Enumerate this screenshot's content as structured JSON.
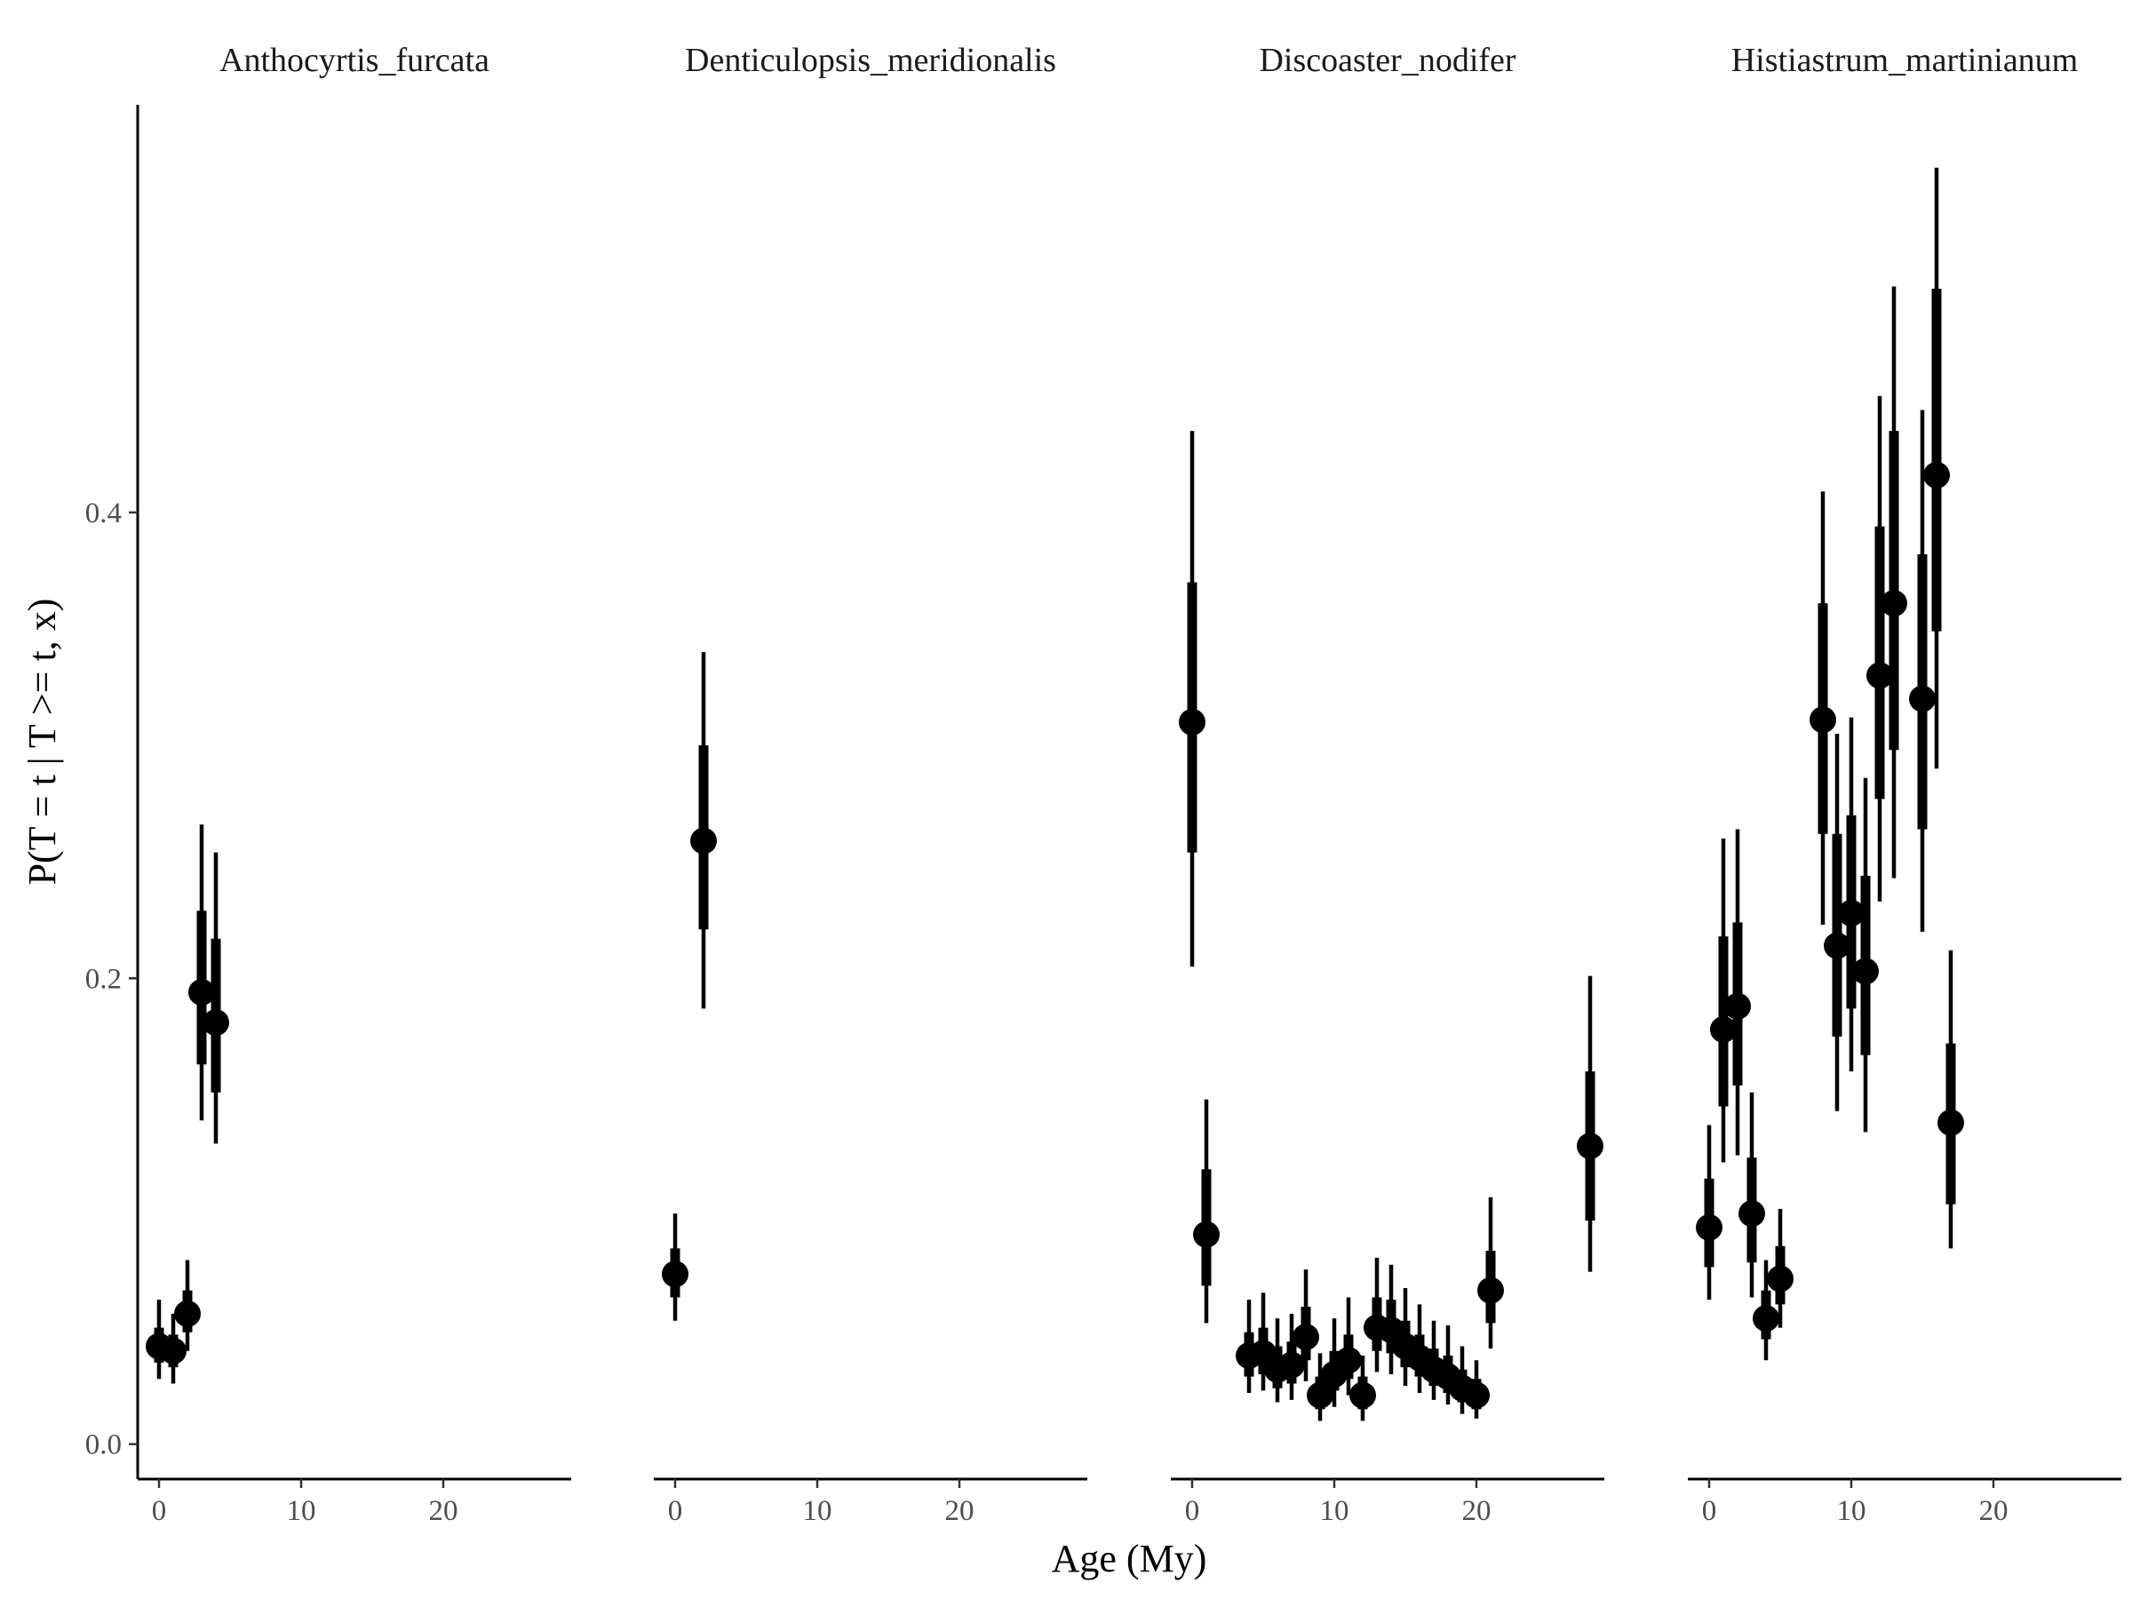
{
  "chart_data": {
    "type": "scatter",
    "subtype": "faceted point-range (facet_wrap, 4 panels, shared y axis)",
    "xlabel": "Age (My)",
    "ylabel": "P(T = t | T >= t, x)",
    "xlim": [
      -1.5,
      29
    ],
    "ylim": [
      -0.015,
      0.575
    ],
    "x_ticks": [
      0,
      10,
      20
    ],
    "x_tick_labels": [
      "0",
      "10",
      "20"
    ],
    "y_ticks": [
      0.0,
      0.2,
      0.4
    ],
    "y_tick_labels": [
      "0.0",
      "0.2",
      "0.4"
    ],
    "grid": false,
    "legend": "none",
    "point_color": "#000000",
    "panels": [
      {
        "title": "Anthocyrtis_furcata",
        "points": [
          {
            "x": 0,
            "y": 0.042,
            "inner": [
              0.035,
              0.05
            ],
            "outer": [
              0.028,
              0.062
            ]
          },
          {
            "x": 1,
            "y": 0.04,
            "inner": [
              0.033,
              0.047
            ],
            "outer": [
              0.026,
              0.056
            ]
          },
          {
            "x": 2,
            "y": 0.056,
            "inner": [
              0.048,
              0.066
            ],
            "outer": [
              0.04,
              0.079
            ]
          },
          {
            "x": 3,
            "y": 0.194,
            "inner": [
              0.163,
              0.229
            ],
            "outer": [
              0.139,
              0.266
            ]
          },
          {
            "x": 4,
            "y": 0.181,
            "inner": [
              0.151,
              0.217
            ],
            "outer": [
              0.129,
              0.254
            ]
          }
        ]
      },
      {
        "title": "Denticulopsis_meridionalis",
        "points": [
          {
            "x": 0,
            "y": 0.073,
            "inner": [
              0.063,
              0.084
            ],
            "outer": [
              0.053,
              0.099
            ]
          },
          {
            "x": 2,
            "y": 0.259,
            "inner": [
              0.221,
              0.3
            ],
            "outer": [
              0.187,
              0.34
            ]
          }
        ]
      },
      {
        "title": "Discoaster_nodifer",
        "points": [
          {
            "x": 0,
            "y": 0.31,
            "inner": [
              0.254,
              0.37
            ],
            "outer": [
              0.205,
              0.435
            ]
          },
          {
            "x": 1,
            "y": 0.09,
            "inner": [
              0.068,
              0.118
            ],
            "outer": [
              0.052,
              0.148
            ]
          },
          {
            "x": 4,
            "y": 0.038,
            "inner": [
              0.029,
              0.048
            ],
            "outer": [
              0.022,
              0.062
            ]
          },
          {
            "x": 5,
            "y": 0.039,
            "inner": [
              0.03,
              0.05
            ],
            "outer": [
              0.023,
              0.065
            ]
          },
          {
            "x": 6,
            "y": 0.032,
            "inner": [
              0.024,
              0.042
            ],
            "outer": [
              0.018,
              0.054
            ]
          },
          {
            "x": 7,
            "y": 0.034,
            "inner": [
              0.026,
              0.044
            ],
            "outer": [
              0.019,
              0.056
            ]
          },
          {
            "x": 8,
            "y": 0.046,
            "inner": [
              0.036,
              0.059
            ],
            "outer": [
              0.027,
              0.075
            ]
          },
          {
            "x": 9,
            "y": 0.021,
            "inner": [
              0.015,
              0.029
            ],
            "outer": [
              0.01,
              0.039
            ]
          },
          {
            "x": 10,
            "y": 0.03,
            "inner": [
              0.023,
              0.04
            ],
            "outer": [
              0.016,
              0.054
            ]
          },
          {
            "x": 11,
            "y": 0.036,
            "inner": [
              0.028,
              0.047
            ],
            "outer": [
              0.021,
              0.063
            ]
          },
          {
            "x": 12,
            "y": 0.021,
            "inner": [
              0.015,
              0.029
            ],
            "outer": [
              0.01,
              0.038
            ]
          },
          {
            "x": 13,
            "y": 0.05,
            "inner": [
              0.04,
              0.063
            ],
            "outer": [
              0.031,
              0.08
            ]
          },
          {
            "x": 14,
            "y": 0.049,
            "inner": [
              0.039,
              0.062
            ],
            "outer": [
              0.03,
              0.077
            ]
          },
          {
            "x": 15,
            "y": 0.042,
            "inner": [
              0.033,
              0.053
            ],
            "outer": [
              0.025,
              0.067
            ]
          },
          {
            "x": 16,
            "y": 0.037,
            "inner": [
              0.029,
              0.047
            ],
            "outer": [
              0.022,
              0.06
            ]
          },
          {
            "x": 17,
            "y": 0.032,
            "inner": [
              0.025,
              0.041
            ],
            "outer": [
              0.019,
              0.053
            ]
          },
          {
            "x": 18,
            "y": 0.029,
            "inner": [
              0.022,
              0.038
            ],
            "outer": [
              0.017,
              0.051
            ]
          },
          {
            "x": 19,
            "y": 0.024,
            "inner": [
              0.018,
              0.032
            ],
            "outer": [
              0.013,
              0.042
            ]
          },
          {
            "x": 20,
            "y": 0.021,
            "inner": [
              0.015,
              0.028
            ],
            "outer": [
              0.011,
              0.036
            ]
          },
          {
            "x": 21,
            "y": 0.066,
            "inner": [
              0.052,
              0.083
            ],
            "outer": [
              0.041,
              0.106
            ]
          },
          {
            "x": 28,
            "y": 0.128,
            "inner": [
              0.096,
              0.16
            ],
            "outer": [
              0.074,
              0.201
            ]
          }
        ]
      },
      {
        "title": "Histiastrum_martinianum",
        "points": [
          {
            "x": 0,
            "y": 0.093,
            "inner": [
              0.076,
              0.114
            ],
            "outer": [
              0.062,
              0.137
            ]
          },
          {
            "x": 1,
            "y": 0.178,
            "inner": [
              0.145,
              0.218
            ],
            "outer": [
              0.121,
              0.26
            ]
          },
          {
            "x": 2,
            "y": 0.188,
            "inner": [
              0.154,
              0.224
            ],
            "outer": [
              0.124,
              0.264
            ]
          },
          {
            "x": 3,
            "y": 0.099,
            "inner": [
              0.078,
              0.123
            ],
            "outer": [
              0.063,
              0.151
            ]
          },
          {
            "x": 4,
            "y": 0.054,
            "inner": [
              0.045,
              0.066
            ],
            "outer": [
              0.036,
              0.079
            ]
          },
          {
            "x": 5,
            "y": 0.071,
            "inner": [
              0.06,
              0.085
            ],
            "outer": [
              0.05,
              0.101
            ]
          },
          {
            "x": 8,
            "y": 0.311,
            "inner": [
              0.262,
              0.361
            ],
            "outer": [
              0.223,
              0.409
            ]
          },
          {
            "x": 9,
            "y": 0.214,
            "inner": [
              0.175,
              0.262
            ],
            "outer": [
              0.143,
              0.305
            ]
          },
          {
            "x": 10,
            "y": 0.228,
            "inner": [
              0.187,
              0.27
            ],
            "outer": [
              0.16,
              0.312
            ]
          },
          {
            "x": 11,
            "y": 0.203,
            "inner": [
              0.167,
              0.244
            ],
            "outer": [
              0.134,
              0.286
            ]
          },
          {
            "x": 12,
            "y": 0.33,
            "inner": [
              0.277,
              0.394
            ],
            "outer": [
              0.233,
              0.45
            ]
          },
          {
            "x": 13,
            "y": 0.361,
            "inner": [
              0.298,
              0.435
            ],
            "outer": [
              0.243,
              0.497
            ]
          },
          {
            "x": 15,
            "y": 0.32,
            "inner": [
              0.264,
              0.382
            ],
            "outer": [
              0.22,
              0.444
            ]
          },
          {
            "x": 16,
            "y": 0.416,
            "inner": [
              0.349,
              0.496
            ],
            "outer": [
              0.29,
              0.548
            ]
          },
          {
            "x": 17,
            "y": 0.138,
            "inner": [
              0.103,
              0.172
            ],
            "outer": [
              0.084,
              0.212
            ]
          }
        ]
      }
    ]
  }
}
